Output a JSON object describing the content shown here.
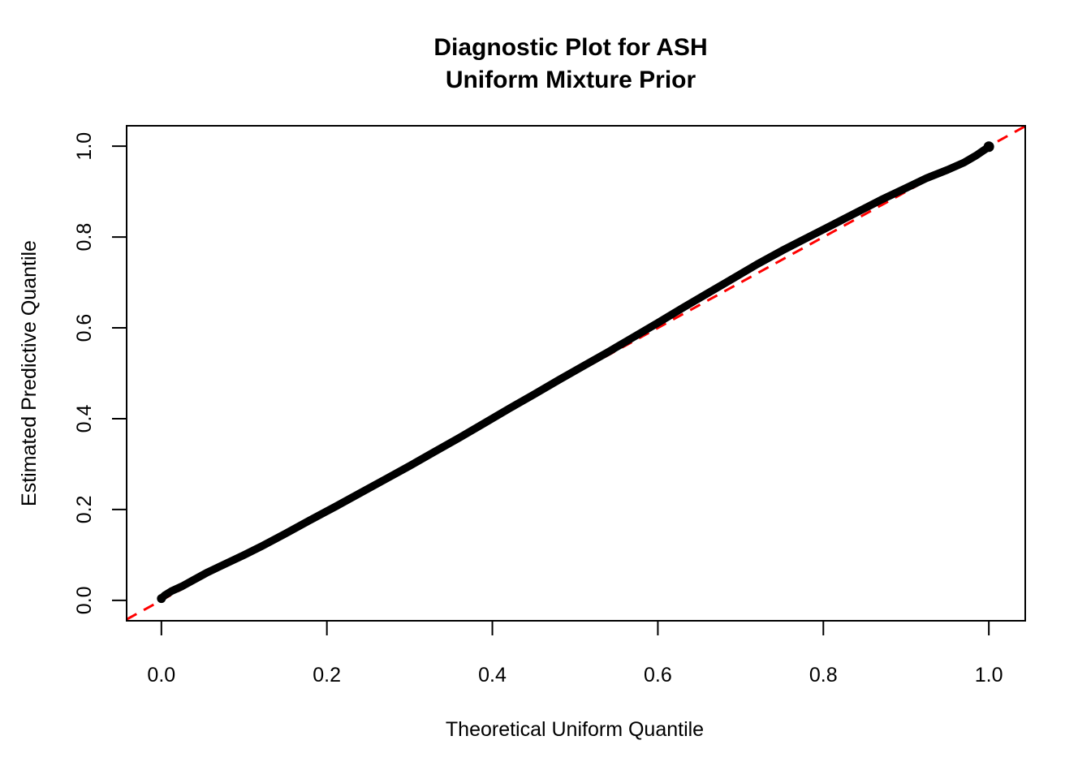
{
  "figure": {
    "title_line1": "Diagnostic Plot for ASH",
    "title_line2": "Uniform Mixture Prior",
    "background_color": "#ffffff",
    "foreground_color": "#000000"
  },
  "chart_data": {
    "type": "scatter",
    "title": "Diagnostic Plot for ASH\nUniform Mixture Prior",
    "xlabel": "Theoretical Uniform Quantile",
    "ylabel": "Estimated Predictive Quantile",
    "xlim": [
      -0.042,
      1.044
    ],
    "ylim": [
      -0.045,
      1.045
    ],
    "grid": false,
    "legend": "none",
    "x_ticks": {
      "values": [
        0.0,
        0.2,
        0.4,
        0.6,
        0.8,
        1.0
      ],
      "labels": [
        "0.0",
        "0.2",
        "0.4",
        "0.6",
        "0.8",
        "1.0"
      ]
    },
    "y_ticks": {
      "values": [
        0.0,
        0.2,
        0.4,
        0.6,
        0.8,
        1.0
      ],
      "labels": [
        "0.0",
        "0.2",
        "0.4",
        "0.6",
        "0.8",
        "1.0"
      ]
    },
    "series": [
      {
        "name": "estimated-predictive-quantiles",
        "color": "#000000",
        "marker": "dense-points",
        "line_width": 9.5,
        "points": [
          [
            0.0,
            0.004
          ],
          [
            0.004,
            0.011
          ],
          [
            0.012,
            0.02
          ],
          [
            0.025,
            0.031
          ],
          [
            0.04,
            0.046
          ],
          [
            0.055,
            0.061
          ],
          [
            0.07,
            0.074
          ],
          [
            0.085,
            0.087
          ],
          [
            0.1,
            0.1
          ],
          [
            0.12,
            0.118
          ],
          [
            0.15,
            0.147
          ],
          [
            0.18,
            0.177
          ],
          [
            0.21,
            0.206
          ],
          [
            0.24,
            0.236
          ],
          [
            0.27,
            0.266
          ],
          [
            0.3,
            0.296
          ],
          [
            0.33,
            0.327
          ],
          [
            0.36,
            0.358
          ],
          [
            0.39,
            0.39
          ],
          [
            0.42,
            0.422
          ],
          [
            0.45,
            0.453
          ],
          [
            0.48,
            0.485
          ],
          [
            0.51,
            0.516
          ],
          [
            0.54,
            0.547
          ],
          [
            0.57,
            0.579
          ],
          [
            0.6,
            0.611
          ],
          [
            0.63,
            0.644
          ],
          [
            0.66,
            0.676
          ],
          [
            0.69,
            0.708
          ],
          [
            0.72,
            0.74
          ],
          [
            0.75,
            0.77
          ],
          [
            0.78,
            0.798
          ],
          [
            0.81,
            0.826
          ],
          [
            0.84,
            0.854
          ],
          [
            0.87,
            0.882
          ],
          [
            0.9,
            0.908
          ],
          [
            0.925,
            0.93
          ],
          [
            0.95,
            0.948
          ],
          [
            0.97,
            0.964
          ],
          [
            0.985,
            0.98
          ],
          [
            0.993,
            0.99
          ],
          [
            0.998,
            0.996
          ],
          [
            1.0,
            0.999
          ]
        ]
      }
    ],
    "reference_line": {
      "name": "identity-line",
      "equation": "y = x",
      "intercept": 0,
      "slope": 1,
      "color": "#FF0000",
      "style": "dashed",
      "dash_pattern": [
        14,
        10
      ],
      "line_width": 3
    }
  }
}
